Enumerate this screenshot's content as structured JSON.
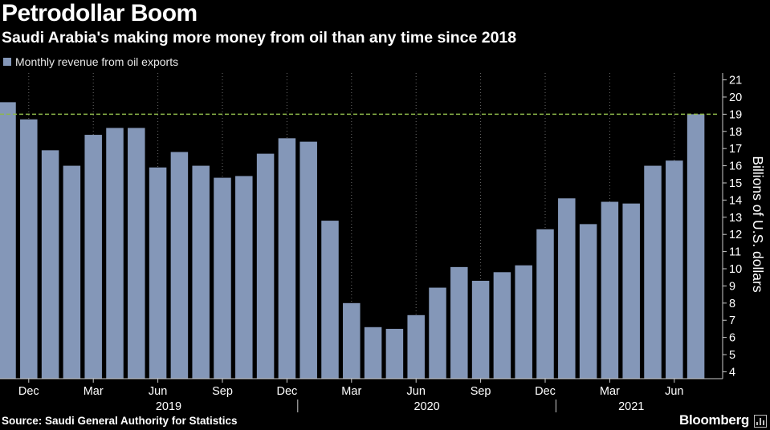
{
  "header": {
    "title": "Petrodollar Boom",
    "subtitle": "Saudi Arabia's making more money from oil than any time since 2018"
  },
  "legend": {
    "label": "Monthly revenue from oil exports"
  },
  "footer": {
    "source": "Source: Saudi General Authority for Statistics",
    "brand": "Bloomberg"
  },
  "colors": {
    "background": "#000000",
    "bar": "#8497b8",
    "reference_line": "#8db84a",
    "grid": "#6a6a6a",
    "text": "#ffffff"
  },
  "chart_data": {
    "type": "bar",
    "series": [
      {
        "name": "Monthly revenue from oil exports",
        "values": [
          19.7,
          18.7,
          16.9,
          16.0,
          17.8,
          18.2,
          18.2,
          15.9,
          16.8,
          16.0,
          15.3,
          15.4,
          16.7,
          17.6,
          17.4,
          12.8,
          8.0,
          6.6,
          6.5,
          7.3,
          8.9,
          10.1,
          9.3,
          9.8,
          10.2,
          12.3,
          14.1,
          12.6,
          13.9,
          13.8,
          16.0,
          16.3,
          19.0
        ]
      }
    ],
    "x_tick_labels": [
      {
        "index": 1,
        "label": "Dec"
      },
      {
        "index": 4,
        "label": "Mar"
      },
      {
        "index": 7,
        "label": "Jun"
      },
      {
        "index": 10,
        "label": "Sep"
      },
      {
        "index": 13,
        "label": "Dec"
      },
      {
        "index": 16,
        "label": "Mar"
      },
      {
        "index": 19,
        "label": "Jun"
      },
      {
        "index": 22,
        "label": "Sep"
      },
      {
        "index": 25,
        "label": "Dec"
      },
      {
        "index": 28,
        "label": "Mar"
      },
      {
        "index": 31,
        "label": "Jun"
      }
    ],
    "year_labels": [
      {
        "label": "2019",
        "start_index": 2,
        "end_index": 13
      },
      {
        "label": "2020",
        "start_index": 14,
        "end_index": 25
      },
      {
        "label": "2021",
        "start_index": 26,
        "end_index": 32
      }
    ],
    "year_separators_after_index": [
      13,
      25
    ],
    "y_ticks": [
      4,
      5,
      6,
      7,
      8,
      9,
      10,
      11,
      12,
      13,
      14,
      15,
      16,
      17,
      18,
      19,
      20,
      21
    ],
    "ylim": [
      3.6,
      21.4
    ],
    "ylabel": "Billions of U.S. dollars",
    "y_axis_position": "right",
    "reference_line": {
      "value": 19.0,
      "style": "dashed"
    },
    "grid": "vertical dotted",
    "legend_position": "top-left"
  }
}
